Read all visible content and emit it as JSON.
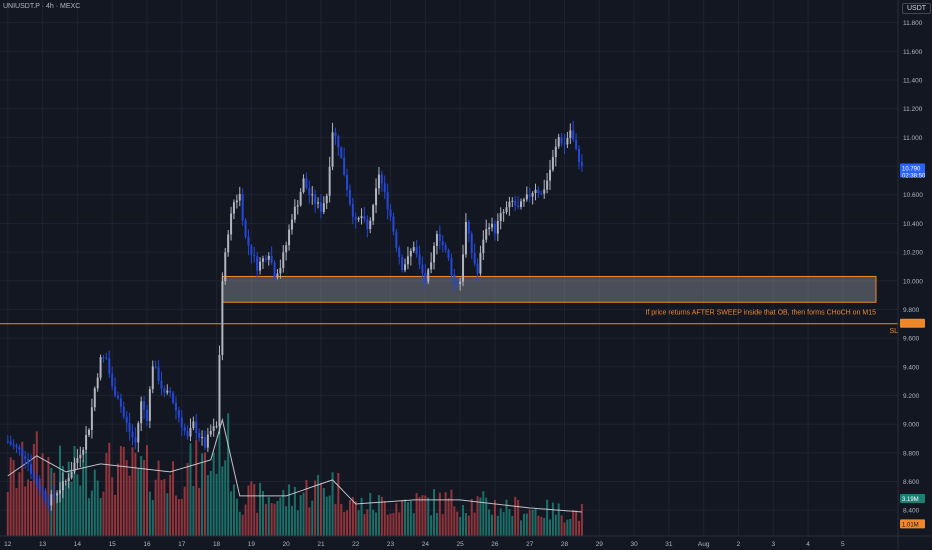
{
  "header": {
    "symbol_line": "UNIUSDT.P · 4h · MEXC",
    "currency": "USDT"
  },
  "colors": {
    "background": "#131722",
    "up": "#b2b5be",
    "down": "#2448d8",
    "vol_up": "#1d7f74",
    "vol_down": "#a8393f",
    "zone": "#f0882a",
    "price_badge": "#2962ff",
    "ma": "#d1d4dc"
  },
  "annotation": {
    "note": "If price returns AFTER SWEEP inside that OB, then forms CHoCH on M15",
    "sl_label": "SL",
    "sl_price": 9.7,
    "ob_zone": [
      9.85,
      10.03
    ]
  },
  "price_badges": {
    "last": "10.790",
    "countdown": "02:38:50",
    "vol_a": "3.19M",
    "vol_b": "1.01M"
  },
  "chart_data": {
    "type": "candlestick",
    "title": "UNIUSDT.P · 4h · MEXC",
    "y_axis": {
      "side": "right",
      "ylim": [
        8.22,
        11.93
      ],
      "ticks": [
        "8.400",
        "8.600",
        "8.800",
        "9.000",
        "9.200",
        "9.400",
        "9.600",
        "9.800",
        "10.000",
        "10.200",
        "10.400",
        "10.600",
        "10.800",
        "11.000",
        "11.200",
        "11.400",
        "11.600",
        "11.800"
      ]
    },
    "x_axis": {
      "bar_index_range": [
        -2,
        217
      ],
      "ticks": [
        {
          "label": "12",
          "bar": 0
        },
        {
          "label": "13",
          "bar": 12
        },
        {
          "label": "14",
          "bar": 24
        },
        {
          "label": "15",
          "bar": 36
        },
        {
          "label": "16",
          "bar": 48
        },
        {
          "label": "17",
          "bar": 60
        },
        {
          "label": "18",
          "bar": 72
        },
        {
          "label": "19",
          "bar": 84
        },
        {
          "label": "20",
          "bar": 96
        },
        {
          "label": "21",
          "bar": 108
        },
        {
          "label": "22",
          "bar": 120
        },
        {
          "label": "23",
          "bar": 132
        },
        {
          "label": "24",
          "bar": 144
        },
        {
          "label": "25",
          "bar": 156
        },
        {
          "label": "26",
          "bar": 168
        },
        {
          "label": "27",
          "bar": 180
        },
        {
          "label": "28",
          "bar": 192
        },
        {
          "label": "29",
          "bar": 204
        },
        {
          "label": "30",
          "bar": 216
        },
        {
          "label": "31",
          "bar": 228
        },
        {
          "label": "Aug",
          "bar": 240
        },
        {
          "label": "2",
          "bar": 252
        },
        {
          "label": "3",
          "bar": 264
        },
        {
          "label": "4",
          "bar": 276
        },
        {
          "label": "5",
          "bar": 288
        }
      ]
    },
    "key_points": [
      {
        "bar": 0,
        "price": 8.88
      },
      {
        "bar": 6,
        "price": 8.78
      },
      {
        "bar": 9,
        "price": 8.62
      },
      {
        "bar": 14,
        "price": 8.46
      },
      {
        "bar": 20,
        "price": 8.6
      },
      {
        "bar": 26,
        "price": 8.85
      },
      {
        "bar": 28,
        "price": 8.98
      },
      {
        "bar": 30,
        "price": 9.25
      },
      {
        "bar": 32,
        "price": 9.45
      },
      {
        "bar": 34,
        "price": 9.46
      },
      {
        "bar": 36,
        "price": 9.25
      },
      {
        "bar": 38,
        "price": 9.2
      },
      {
        "bar": 40,
        "price": 9.05
      },
      {
        "bar": 42,
        "price": 8.95
      },
      {
        "bar": 44,
        "price": 8.87
      },
      {
        "bar": 46,
        "price": 9.15
      },
      {
        "bar": 48,
        "price": 9.05
      },
      {
        "bar": 50,
        "price": 9.42
      },
      {
        "bar": 52,
        "price": 9.32
      },
      {
        "bar": 54,
        "price": 9.2
      },
      {
        "bar": 56,
        "price": 9.22
      },
      {
        "bar": 58,
        "price": 9.1
      },
      {
        "bar": 60,
        "price": 9.0
      },
      {
        "bar": 62,
        "price": 8.9
      },
      {
        "bar": 64,
        "price": 9.0
      },
      {
        "bar": 66,
        "price": 8.92
      },
      {
        "bar": 68,
        "price": 8.85
      },
      {
        "bar": 70,
        "price": 8.95
      },
      {
        "bar": 72,
        "price": 8.98
      },
      {
        "bar": 74,
        "price": 10.0
      },
      {
        "bar": 76,
        "price": 10.35
      },
      {
        "bar": 78,
        "price": 10.55
      },
      {
        "bar": 80,
        "price": 10.6
      },
      {
        "bar": 82,
        "price": 10.3
      },
      {
        "bar": 84,
        "price": 10.2
      },
      {
        "bar": 86,
        "price": 10.1
      },
      {
        "bar": 88,
        "price": 10.15
      },
      {
        "bar": 90,
        "price": 10.2
      },
      {
        "bar": 92,
        "price": 10.05
      },
      {
        "bar": 94,
        "price": 10.1
      },
      {
        "bar": 96,
        "price": 10.25
      },
      {
        "bar": 98,
        "price": 10.45
      },
      {
        "bar": 100,
        "price": 10.55
      },
      {
        "bar": 102,
        "price": 10.7
      },
      {
        "bar": 104,
        "price": 10.6
      },
      {
        "bar": 106,
        "price": 10.55
      },
      {
        "bar": 108,
        "price": 10.5
      },
      {
        "bar": 110,
        "price": 10.6
      },
      {
        "bar": 112,
        "price": 11.05
      },
      {
        "bar": 114,
        "price": 10.95
      },
      {
        "bar": 116,
        "price": 10.75
      },
      {
        "bar": 118,
        "price": 10.55
      },
      {
        "bar": 120,
        "price": 10.4
      },
      {
        "bar": 122,
        "price": 10.45
      },
      {
        "bar": 124,
        "price": 10.35
      },
      {
        "bar": 126,
        "price": 10.5
      },
      {
        "bar": 128,
        "price": 10.75
      },
      {
        "bar": 130,
        "price": 10.6
      },
      {
        "bar": 132,
        "price": 10.45
      },
      {
        "bar": 134,
        "price": 10.25
      },
      {
        "bar": 136,
        "price": 10.1
      },
      {
        "bar": 138,
        "price": 10.15
      },
      {
        "bar": 140,
        "price": 10.25
      },
      {
        "bar": 142,
        "price": 10.1
      },
      {
        "bar": 144,
        "price": 10.0
      },
      {
        "bar": 146,
        "price": 10.1
      },
      {
        "bar": 148,
        "price": 10.35
      },
      {
        "bar": 150,
        "price": 10.25
      },
      {
        "bar": 152,
        "price": 10.15
      },
      {
        "bar": 154,
        "price": 9.98
      },
      {
        "bar": 156,
        "price": 10.0
      },
      {
        "bar": 158,
        "price": 10.4
      },
      {
        "bar": 160,
        "price": 10.2
      },
      {
        "bar": 162,
        "price": 10.05
      },
      {
        "bar": 164,
        "price": 10.3
      },
      {
        "bar": 166,
        "price": 10.4
      },
      {
        "bar": 168,
        "price": 10.35
      },
      {
        "bar": 170,
        "price": 10.45
      },
      {
        "bar": 172,
        "price": 10.5
      },
      {
        "bar": 174,
        "price": 10.55
      },
      {
        "bar": 176,
        "price": 10.5
      },
      {
        "bar": 178,
        "price": 10.55
      },
      {
        "bar": 180,
        "price": 10.6
      },
      {
        "bar": 182,
        "price": 10.65
      },
      {
        "bar": 184,
        "price": 10.6
      },
      {
        "bar": 186,
        "price": 10.7
      },
      {
        "bar": 188,
        "price": 10.85
      },
      {
        "bar": 190,
        "price": 11.0
      },
      {
        "bar": 192,
        "price": 10.95
      },
      {
        "bar": 194,
        "price": 11.05
      },
      {
        "bar": 196,
        "price": 10.9
      },
      {
        "bar": 198,
        "price": 10.8
      }
    ],
    "volume": {
      "ylim": [
        0,
        3.2
      ],
      "key_points": [
        {
          "bar": 0,
          "value": 1.5
        },
        {
          "bar": 10,
          "value": 2.0
        },
        {
          "bar": 20,
          "value": 1.6
        },
        {
          "bar": 32,
          "value": 1.8
        },
        {
          "bar": 44,
          "value": 1.7
        },
        {
          "bar": 56,
          "value": 1.6
        },
        {
          "bar": 70,
          "value": 1.9
        },
        {
          "bar": 74,
          "value": 2.9
        },
        {
          "bar": 80,
          "value": 1.0
        },
        {
          "bar": 96,
          "value": 1.0
        },
        {
          "bar": 112,
          "value": 1.4
        },
        {
          "bar": 120,
          "value": 0.8
        },
        {
          "bar": 140,
          "value": 0.9
        },
        {
          "bar": 156,
          "value": 0.9
        },
        {
          "bar": 180,
          "value": 0.7
        },
        {
          "bar": 198,
          "value": 0.6
        }
      ]
    }
  }
}
